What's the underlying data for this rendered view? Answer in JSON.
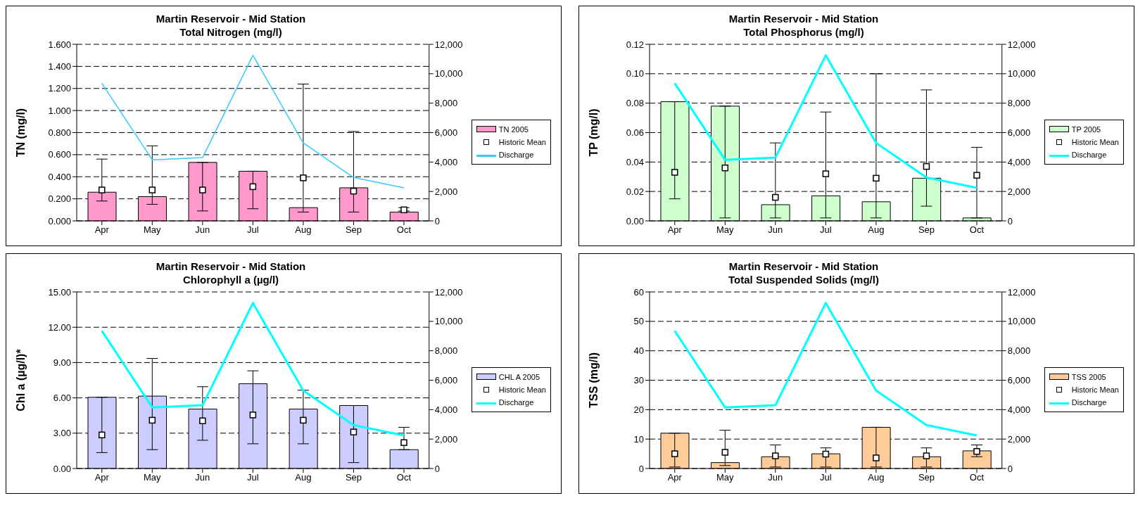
{
  "chart_data": [
    {
      "type": "bar",
      "title": "Martin Reservoir - Mid Station",
      "subtitle": "Total Nitrogen (mg/l)",
      "ylabel": "TN (mg/l)",
      "categories": [
        "Apr",
        "May",
        "Jun",
        "Jul",
        "Aug",
        "Sep",
        "Oct"
      ],
      "series": [
        {
          "name": "TN 2005",
          "color": "#ff99cc",
          "values": [
            0.26,
            0.22,
            0.53,
            0.45,
            0.12,
            0.3,
            0.08
          ]
        },
        {
          "type": "scatter",
          "name": "Historic Mean",
          "color": "#000000",
          "marker": "square",
          "values": [
            0.28,
            0.28,
            0.28,
            0.31,
            0.39,
            0.27,
            0.1
          ],
          "errors": [
            [
              0.18,
              0.56
            ],
            [
              0.15,
              0.68
            ],
            [
              0.09,
              0.53
            ],
            [
              0.11,
              0.45
            ],
            [
              0.08,
              1.24
            ],
            [
              0.08,
              0.81
            ],
            [
              0.09,
              0.12
            ]
          ]
        },
        {
          "type": "line",
          "name": "Discharge",
          "color": "#33ccff",
          "axis": "y2",
          "values": [
            9350,
            4150,
            4300,
            11250,
            5300,
            2950,
            2250
          ]
        }
      ],
      "ylim": [
        0,
        1.6
      ],
      "yticks": [
        {
          "value": 0,
          "label": "0.000"
        },
        {
          "value": 0.2,
          "label": "0.200"
        },
        {
          "value": 0.4,
          "label": "0.400"
        },
        {
          "value": 0.6,
          "label": "0.600"
        },
        {
          "value": 0.8,
          "label": "0.800"
        },
        {
          "value": 1.0,
          "label": "1.000"
        },
        {
          "value": 1.2,
          "label": "1.200"
        },
        {
          "value": 1.4,
          "label": "1.400"
        },
        {
          "value": 1.6,
          "label": "1.600"
        }
      ],
      "y2lim": [
        0,
        12000
      ],
      "y2ticks": [
        {
          "value": 0,
          "label": "0"
        },
        {
          "value": 2000,
          "label": "2,000"
        },
        {
          "value": 4000,
          "label": "4,000"
        },
        {
          "value": 6000,
          "label": "6,000"
        },
        {
          "value": 8000,
          "label": "8,000"
        },
        {
          "value": 10000,
          "label": "10,000"
        },
        {
          "value": 12000,
          "label": "12,000"
        }
      ],
      "grid": "y",
      "legend": "right"
    },
    {
      "type": "bar",
      "title": "Martin Reservoir - Mid Station",
      "subtitle": "Total Phosphorus (mg/l)",
      "ylabel": "TP (mg/l)",
      "categories": [
        "Apr",
        "May",
        "Jun",
        "Jul",
        "Aug",
        "Sep",
        "Oct"
      ],
      "series": [
        {
          "name": "TP 2005",
          "color": "#ccffcc",
          "values": [
            0.081,
            0.078,
            0.011,
            0.017,
            0.013,
            0.029,
            0.002
          ]
        },
        {
          "type": "scatter",
          "name": "Historic Mean",
          "color": "#000000",
          "marker": "square",
          "values": [
            0.033,
            0.036,
            0.016,
            0.032,
            0.029,
            0.037,
            0.031
          ],
          "errors": [
            [
              0.015,
              0.081
            ],
            [
              0.002,
              0.078
            ],
            [
              0.002,
              0.053
            ],
            [
              0.002,
              0.074
            ],
            [
              0.002,
              0.1
            ],
            [
              0.01,
              0.089
            ],
            [
              0.002,
              0.05
            ]
          ]
        },
        {
          "type": "line",
          "name": "Discharge",
          "color": "#00ffff",
          "axis": "y2",
          "values": [
            9350,
            4150,
            4300,
            11250,
            5300,
            2950,
            2250
          ]
        }
      ],
      "ylim": [
        0,
        0.12
      ],
      "yticks": [
        {
          "value": 0,
          "label": "0.00"
        },
        {
          "value": 0.02,
          "label": "0.02"
        },
        {
          "value": 0.04,
          "label": "0.04"
        },
        {
          "value": 0.06,
          "label": "0.06"
        },
        {
          "value": 0.08,
          "label": "0.08"
        },
        {
          "value": 0.1,
          "label": "0.10"
        },
        {
          "value": 0.12,
          "label": "0.12"
        }
      ],
      "y2lim": [
        0,
        12000
      ],
      "y2ticks": [
        {
          "value": 0,
          "label": "0"
        },
        {
          "value": 2000,
          "label": "2,000"
        },
        {
          "value": 4000,
          "label": "4,000"
        },
        {
          "value": 6000,
          "label": "6,000"
        },
        {
          "value": 8000,
          "label": "8,000"
        },
        {
          "value": 10000,
          "label": "10,000"
        },
        {
          "value": 12000,
          "label": "12,000"
        }
      ],
      "grid": "y",
      "legend": "right"
    },
    {
      "type": "bar",
      "title": "Martin Reservoir - Mid Station",
      "subtitle": "Chlorophyll a  (µg/l)",
      "ylabel": "Chl a (µg/l)*",
      "categories": [
        "Apr",
        "May",
        "Jun",
        "Jul",
        "Aug",
        "Sep",
        "Oct"
      ],
      "series": [
        {
          "name": "CHL A 2005",
          "color": "#ccccff",
          "values": [
            6.05,
            6.15,
            5.05,
            7.2,
            5.05,
            5.35,
            1.6
          ]
        },
        {
          "type": "scatter",
          "name": "Historic Mean",
          "color": "#000000",
          "marker": "square",
          "values": [
            2.85,
            4.1,
            4.05,
            4.55,
            4.1,
            3.1,
            2.2
          ],
          "errors": [
            [
              1.35,
              6.05
            ],
            [
              1.6,
              9.35
            ],
            [
              2.4,
              6.95
            ],
            [
              2.1,
              8.3
            ],
            [
              2.1,
              6.65
            ],
            [
              0.5,
              5.35
            ],
            [
              1.6,
              3.5
            ]
          ]
        },
        {
          "type": "line",
          "name": "Discharge",
          "color": "#00ffff",
          "axis": "y2",
          "values": [
            9350,
            4150,
            4300,
            11250,
            5300,
            2950,
            2250
          ]
        }
      ],
      "ylim": [
        0,
        15
      ],
      "yticks": [
        {
          "value": 0,
          "label": "0.00"
        },
        {
          "value": 3,
          "label": "3.00"
        },
        {
          "value": 6,
          "label": "6.00"
        },
        {
          "value": 9,
          "label": "9.00"
        },
        {
          "value": 12,
          "label": "12.00"
        },
        {
          "value": 15,
          "label": "15.00"
        }
      ],
      "y2lim": [
        0,
        12000
      ],
      "y2ticks": [
        {
          "value": 0,
          "label": "0"
        },
        {
          "value": 2000,
          "label": "2,000"
        },
        {
          "value": 4000,
          "label": "4,000"
        },
        {
          "value": 6000,
          "label": "6,000"
        },
        {
          "value": 8000,
          "label": "8,000"
        },
        {
          "value": 10000,
          "label": "10,000"
        },
        {
          "value": 12000,
          "label": "12,000"
        }
      ],
      "grid": "y",
      "legend": "right"
    },
    {
      "type": "bar",
      "title": "Martin Reservoir - Mid Station",
      "subtitle": "Total Suspended Solids  (mg/l)",
      "ylabel": "TSS (mg/l)",
      "categories": [
        "Apr",
        "May",
        "Jun",
        "Jul",
        "Aug",
        "Sep",
        "Oct"
      ],
      "series": [
        {
          "name": "TSS 2005",
          "color": "#ffcc99",
          "values": [
            12,
            2,
            4,
            5,
            14,
            4,
            6
          ]
        },
        {
          "type": "scatter",
          "name": "Historic Mean",
          "color": "#000000",
          "marker": "square",
          "values": [
            5,
            5.5,
            4.3,
            4.9,
            3.6,
            4.3,
            5.8
          ],
          "errors": [
            [
              0.5,
              12
            ],
            [
              1,
              13
            ],
            [
              0.5,
              8
            ],
            [
              0.5,
              7
            ],
            [
              0.5,
              14
            ],
            [
              0.5,
              7
            ],
            [
              4,
              8
            ]
          ]
        },
        {
          "type": "line",
          "name": "Discharge",
          "color": "#00ffff",
          "axis": "y2",
          "values": [
            9350,
            4150,
            4300,
            11250,
            5300,
            2950,
            2250
          ]
        }
      ],
      "ylim": [
        0,
        60
      ],
      "yticks": [
        0,
        10,
        20,
        30,
        40,
        50,
        60
      ],
      "y2lim": [
        0,
        12000
      ],
      "y2ticks": [
        {
          "value": 0,
          "label": "0"
        },
        {
          "value": 2000,
          "label": "2,000"
        },
        {
          "value": 4000,
          "label": "4,000"
        },
        {
          "value": 6000,
          "label": "6,000"
        },
        {
          "value": 8000,
          "label": "8,000"
        },
        {
          "value": 10000,
          "label": "10,000"
        },
        {
          "value": 12000,
          "label": "12,000"
        }
      ],
      "grid": "y",
      "legend": "right"
    }
  ]
}
